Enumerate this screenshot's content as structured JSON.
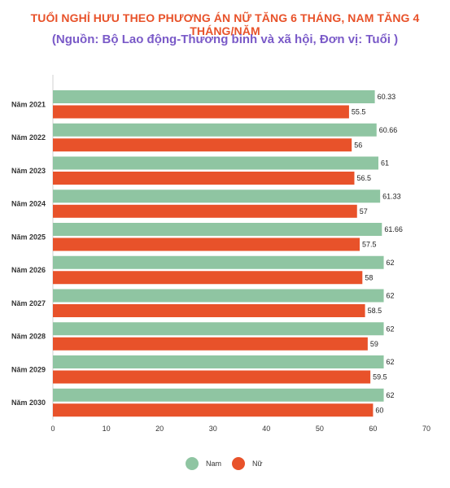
{
  "chart_data": {
    "type": "bar",
    "orientation": "horizontal",
    "title": "TUỔI NGHỈ HƯU THEO PHƯƠNG ÁN NỮ TĂNG 6 THÁNG, NAM TĂNG 4 THÁNG/NĂM",
    "subtitle": "(Nguồn: Bộ Lao động-Thương binh và xã hội, Đơn vị: Tuổi )",
    "categories": [
      "Năm 2021",
      "Năm 2022",
      "Năm 2023",
      "Năm 2024",
      "Năm 2025",
      "Năm 2026",
      "Năm 2027",
      "Năm 2028",
      "Năm 2029",
      "Năm 2030"
    ],
    "series": [
      {
        "name": "Nam",
        "color": "#8fc5a2",
        "values": [
          60.33,
          60.66,
          61,
          61.33,
          61.66,
          62,
          62,
          62,
          62,
          62
        ],
        "labels": [
          "60.33",
          "60.66",
          "61",
          "61.33",
          "61.66",
          "62",
          "62",
          "62",
          "62",
          "62"
        ]
      },
      {
        "name": "Nữ",
        "color": "#e8522a",
        "values": [
          55.5,
          56,
          56.5,
          57,
          57.5,
          58,
          58.5,
          59,
          59.5,
          60
        ],
        "labels": [
          "55.5",
          "56",
          "56.5",
          "57",
          "57.5",
          "58",
          "58.5",
          "59",
          "59.5",
          "60"
        ]
      }
    ],
    "xlim": [
      0,
      70
    ],
    "xticks": [
      "0",
      "10",
      "20",
      "30",
      "40",
      "50",
      "60",
      "70"
    ],
    "legend_position": "bottom",
    "grid": false
  }
}
